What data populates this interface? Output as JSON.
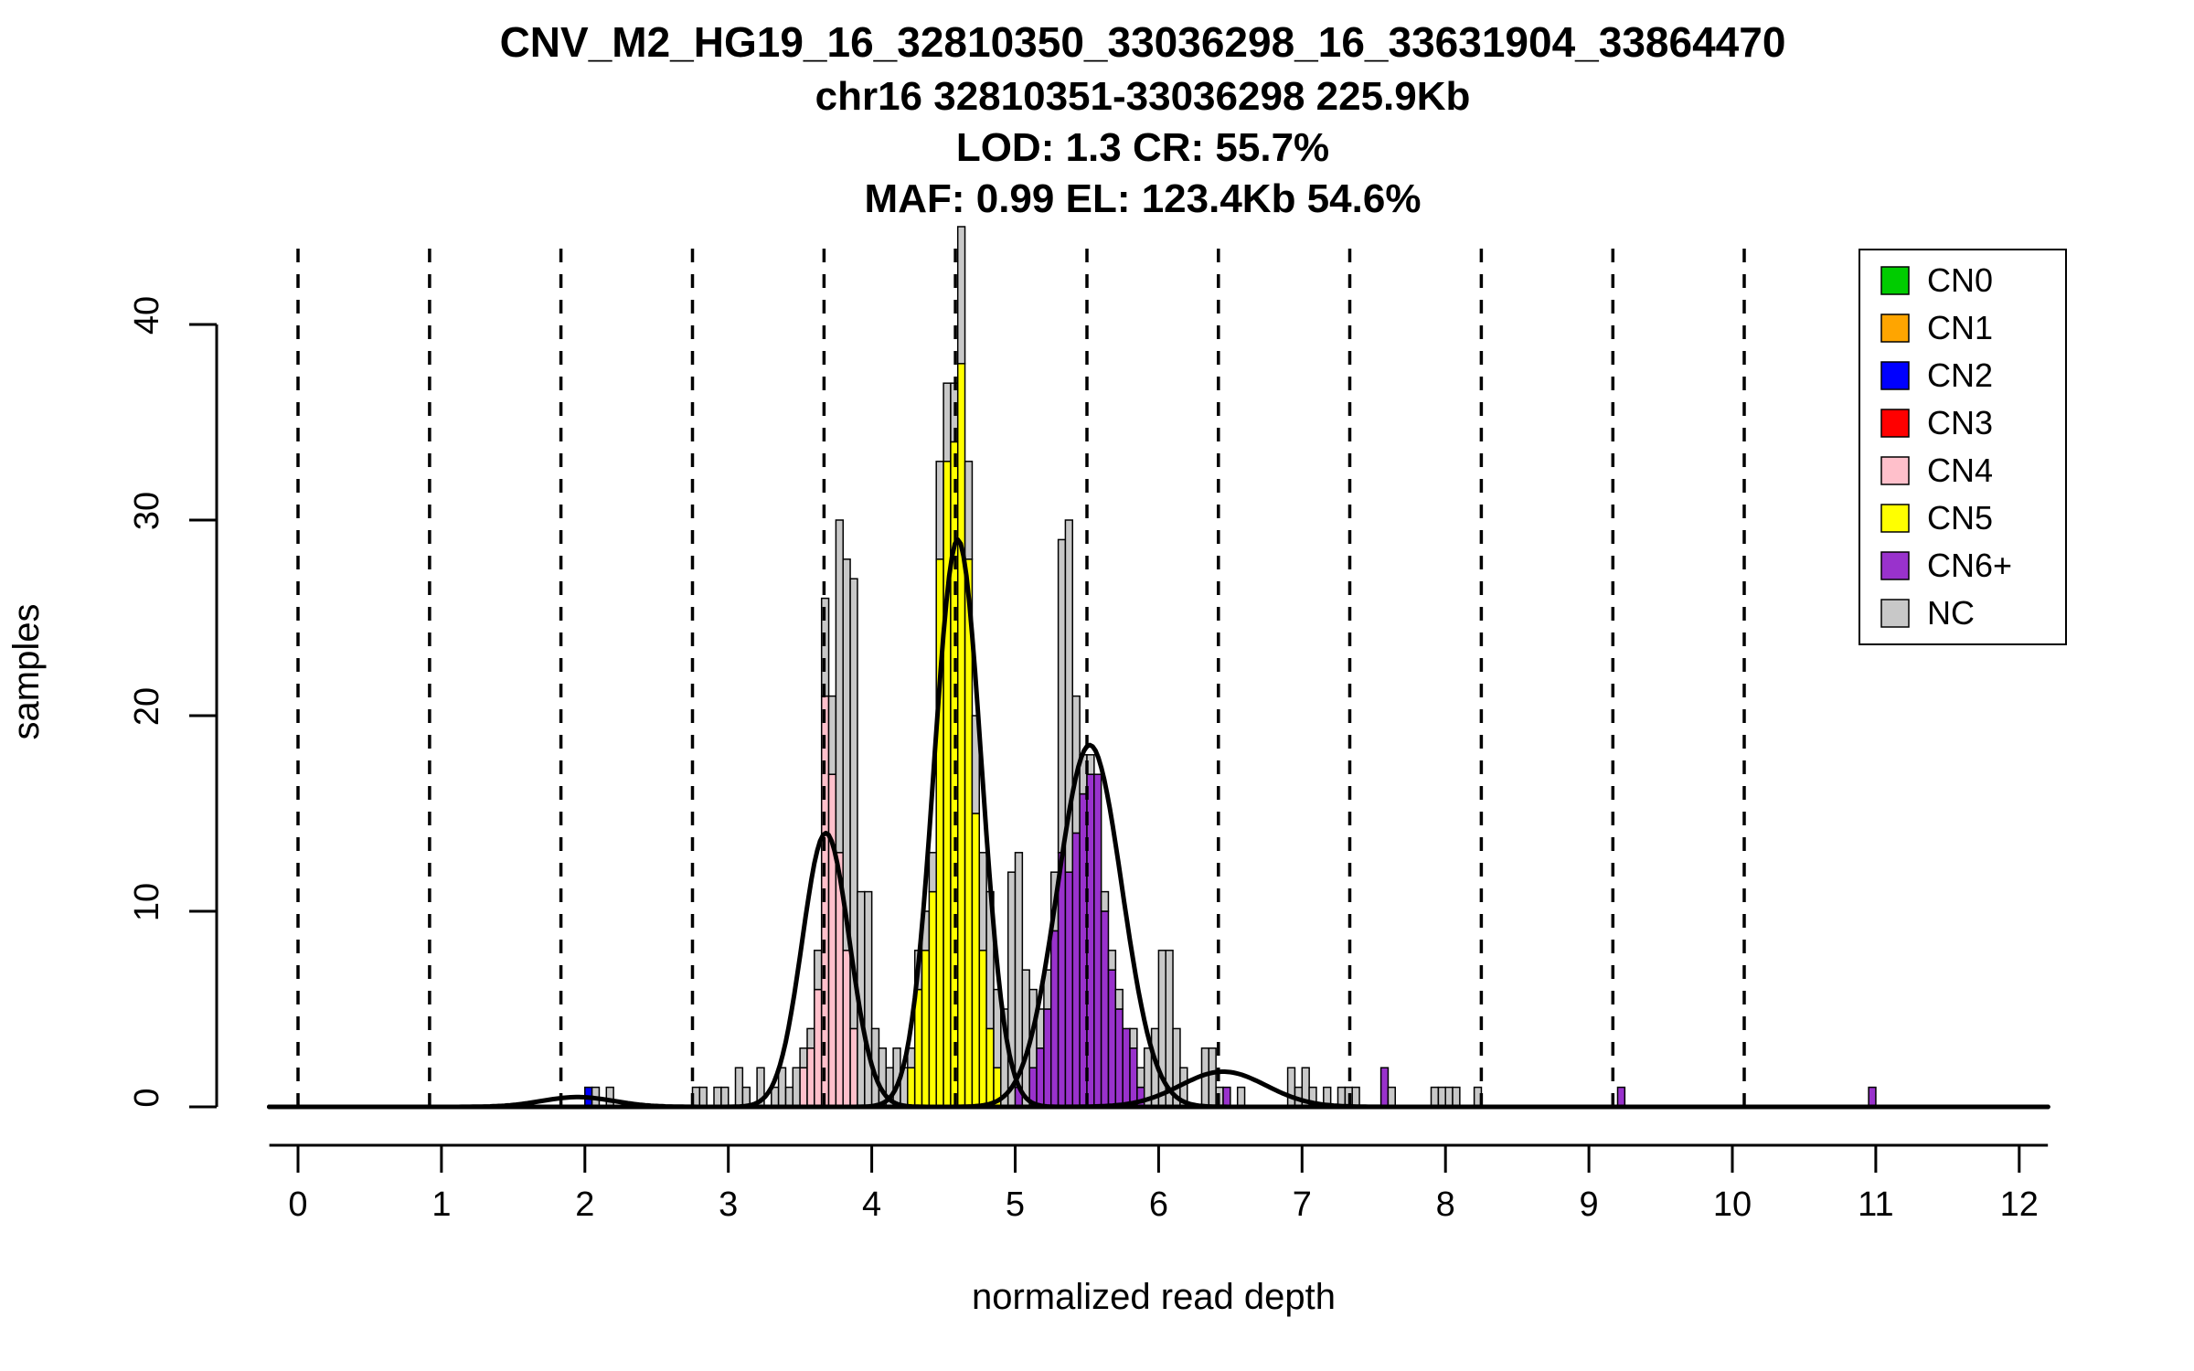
{
  "title_lines": [
    "CNV_M2_HG19_16_32810350_33036298_16_33631904_33864470",
    "chr16 32810351-33036298 225.9Kb",
    "LOD: 1.3 CR: 55.7%",
    "MAF: 0.99 EL: 123.4Kb 54.6%"
  ],
  "x_axis": {
    "label": "normalized read depth",
    "ticks": [
      0,
      1,
      2,
      3,
      4,
      5,
      6,
      7,
      8,
      9,
      10,
      11,
      12
    ],
    "range": [
      -0.2,
      12.2
    ]
  },
  "y_axis": {
    "label": "samples",
    "ticks": [
      0,
      10,
      20,
      30,
      40
    ],
    "range": [
      0,
      45
    ]
  },
  "legend": {
    "items": [
      {
        "label": "CN0",
        "color": "#00CC00"
      },
      {
        "label": "CN1",
        "color": "#FFA500"
      },
      {
        "label": "CN2",
        "color": "#0000FF"
      },
      {
        "label": "CN3",
        "color": "#FF0000"
      },
      {
        "label": "CN4",
        "color": "#FFC0CB"
      },
      {
        "label": "CN5",
        "color": "#FFFF00"
      },
      {
        "label": "CN6+",
        "color": "#9932CC"
      },
      {
        "label": "NC",
        "color": "#C8C8C8"
      }
    ]
  },
  "chart_data": {
    "type": "bar",
    "title": "CNV_M2_HG19_16_32810350_33036298_16_33631904_33864470",
    "subtitle_lines": [
      "chr16 32810351-33036298 225.9Kb",
      "LOD: 1.3 CR: 55.7%",
      "MAF: 0.99 EL: 123.4Kb 54.6%"
    ],
    "xlabel": "normalized read depth",
    "ylabel": "samples",
    "xlim": [
      -0.2,
      12.2
    ],
    "ylim": [
      0,
      45
    ],
    "grid": false,
    "legend_position": "top-right",
    "bin_width": 0.05,
    "class_colors": {
      "CN0": "#00CC00",
      "CN1": "#FFA500",
      "CN2": "#0000FF",
      "CN3": "#FF0000",
      "CN4": "#FFC0CB",
      "CN5": "#FFFF00",
      "CN6+": "#9932CC",
      "NC": "#C8C8C8"
    },
    "bars": [
      [
        2.0,
        [
          [
            "CN2",
            1
          ]
        ]
      ],
      [
        2.05,
        [
          [
            "NC",
            1
          ]
        ]
      ],
      [
        2.15,
        [
          [
            "NC",
            1
          ]
        ]
      ],
      [
        2.75,
        [
          [
            "NC",
            1
          ]
        ]
      ],
      [
        2.8,
        [
          [
            "NC",
            1
          ]
        ]
      ],
      [
        2.9,
        [
          [
            "NC",
            1
          ]
        ]
      ],
      [
        2.95,
        [
          [
            "NC",
            1
          ]
        ]
      ],
      [
        3.05,
        [
          [
            "NC",
            2
          ]
        ]
      ],
      [
        3.1,
        [
          [
            "NC",
            1
          ]
        ]
      ],
      [
        3.2,
        [
          [
            "NC",
            2
          ]
        ]
      ],
      [
        3.3,
        [
          [
            "NC",
            1
          ]
        ]
      ],
      [
        3.35,
        [
          [
            "NC",
            2
          ]
        ]
      ],
      [
        3.4,
        [
          [
            "NC",
            1
          ]
        ]
      ],
      [
        3.45,
        [
          [
            "NC",
            2
          ]
        ]
      ],
      [
        3.5,
        [
          [
            "CN4",
            2
          ],
          [
            "NC",
            1
          ]
        ]
      ],
      [
        3.55,
        [
          [
            "CN4",
            3
          ],
          [
            "NC",
            1
          ]
        ]
      ],
      [
        3.6,
        [
          [
            "CN4",
            6
          ],
          [
            "NC",
            2
          ]
        ]
      ],
      [
        3.65,
        [
          [
            "CN4",
            21
          ],
          [
            "NC",
            5
          ]
        ]
      ],
      [
        3.7,
        [
          [
            "CN4",
            17
          ],
          [
            "NC",
            4
          ]
        ]
      ],
      [
        3.75,
        [
          [
            "CN4",
            13
          ],
          [
            "NC",
            17
          ]
        ]
      ],
      [
        3.8,
        [
          [
            "CN4",
            8
          ],
          [
            "NC",
            20
          ]
        ]
      ],
      [
        3.85,
        [
          [
            "CN4",
            4
          ],
          [
            "NC",
            23
          ]
        ]
      ],
      [
        3.9,
        [
          [
            "NC",
            11
          ]
        ]
      ],
      [
        3.95,
        [
          [
            "NC",
            11
          ]
        ]
      ],
      [
        4.0,
        [
          [
            "NC",
            4
          ]
        ]
      ],
      [
        4.05,
        [
          [
            "NC",
            3
          ]
        ]
      ],
      [
        4.1,
        [
          [
            "NC",
            2
          ]
        ]
      ],
      [
        4.15,
        [
          [
            "NC",
            3
          ]
        ]
      ],
      [
        4.2,
        [
          [
            "NC",
            2
          ]
        ]
      ],
      [
        4.25,
        [
          [
            "CN5",
            2
          ],
          [
            "NC",
            1
          ]
        ]
      ],
      [
        4.3,
        [
          [
            "CN5",
            6
          ],
          [
            "NC",
            2
          ]
        ]
      ],
      [
        4.35,
        [
          [
            "CN5",
            8
          ],
          [
            "NC",
            2
          ]
        ]
      ],
      [
        4.4,
        [
          [
            "CN5",
            11
          ],
          [
            "NC",
            2
          ]
        ]
      ],
      [
        4.45,
        [
          [
            "CN5",
            28
          ],
          [
            "NC",
            5
          ]
        ]
      ],
      [
        4.5,
        [
          [
            "CN5",
            33
          ],
          [
            "NC",
            4
          ]
        ]
      ],
      [
        4.55,
        [
          [
            "CN5",
            34
          ],
          [
            "NC",
            3
          ]
        ]
      ],
      [
        4.6,
        [
          [
            "CN5",
            38
          ],
          [
            "NC",
            7
          ]
        ]
      ],
      [
        4.65,
        [
          [
            "CN5",
            28
          ],
          [
            "NC",
            5
          ]
        ]
      ],
      [
        4.7,
        [
          [
            "CN5",
            15
          ],
          [
            "NC",
            5
          ]
        ]
      ],
      [
        4.75,
        [
          [
            "CN5",
            8
          ],
          [
            "NC",
            5
          ]
        ]
      ],
      [
        4.8,
        [
          [
            "CN5",
            4
          ],
          [
            "NC",
            7
          ]
        ]
      ],
      [
        4.85,
        [
          [
            "CN5",
            2
          ],
          [
            "NC",
            4
          ]
        ]
      ],
      [
        4.9,
        [
          [
            "NC",
            5
          ]
        ]
      ],
      [
        4.95,
        [
          [
            "NC",
            12
          ]
        ]
      ],
      [
        5.0,
        [
          [
            "CN6+",
            1
          ],
          [
            "NC",
            12
          ]
        ]
      ],
      [
        5.05,
        [
          [
            "NC",
            7
          ]
        ]
      ],
      [
        5.1,
        [
          [
            "CN6+",
            2
          ],
          [
            "NC",
            4
          ]
        ]
      ],
      [
        5.15,
        [
          [
            "CN6+",
            3
          ],
          [
            "NC",
            2
          ]
        ]
      ],
      [
        5.2,
        [
          [
            "CN6+",
            5
          ],
          [
            "NC",
            2
          ]
        ]
      ],
      [
        5.25,
        [
          [
            "CN6+",
            9
          ],
          [
            "NC",
            3
          ]
        ]
      ],
      [
        5.3,
        [
          [
            "CN6+",
            13
          ],
          [
            "NC",
            16
          ]
        ]
      ],
      [
        5.35,
        [
          [
            "CN6+",
            12
          ],
          [
            "NC",
            18
          ]
        ]
      ],
      [
        5.4,
        [
          [
            "CN6+",
            14
          ],
          [
            "NC",
            7
          ]
        ]
      ],
      [
        5.45,
        [
          [
            "CN6+",
            16
          ],
          [
            "NC",
            2
          ]
        ]
      ],
      [
        5.5,
        [
          [
            "CN6+",
            17
          ],
          [
            "NC",
            1
          ]
        ]
      ],
      [
        5.55,
        [
          [
            "CN6+",
            17
          ]
        ]
      ],
      [
        5.6,
        [
          [
            "CN6+",
            10
          ],
          [
            "NC",
            1
          ]
        ]
      ],
      [
        5.65,
        [
          [
            "CN6+",
            7
          ],
          [
            "NC",
            1
          ]
        ]
      ],
      [
        5.7,
        [
          [
            "CN6+",
            5
          ],
          [
            "NC",
            1
          ]
        ]
      ],
      [
        5.75,
        [
          [
            "CN6+",
            4
          ]
        ]
      ],
      [
        5.8,
        [
          [
            "CN6+",
            3
          ],
          [
            "NC",
            1
          ]
        ]
      ],
      [
        5.85,
        [
          [
            "CN6+",
            1
          ],
          [
            "NC",
            1
          ]
        ]
      ],
      [
        5.9,
        [
          [
            "NC",
            3
          ]
        ]
      ],
      [
        5.95,
        [
          [
            "NC",
            4
          ]
        ]
      ],
      [
        6.0,
        [
          [
            "NC",
            8
          ]
        ]
      ],
      [
        6.05,
        [
          [
            "NC",
            8
          ]
        ]
      ],
      [
        6.1,
        [
          [
            "NC",
            4
          ]
        ]
      ],
      [
        6.15,
        [
          [
            "NC",
            2
          ]
        ]
      ],
      [
        6.3,
        [
          [
            "NC",
            3
          ]
        ]
      ],
      [
        6.35,
        [
          [
            "NC",
            3
          ]
        ]
      ],
      [
        6.4,
        [
          [
            "NC",
            1
          ]
        ]
      ],
      [
        6.45,
        [
          [
            "CN6+",
            1
          ]
        ]
      ],
      [
        6.55,
        [
          [
            "NC",
            1
          ]
        ]
      ],
      [
        6.9,
        [
          [
            "NC",
            2
          ]
        ]
      ],
      [
        6.95,
        [
          [
            "NC",
            1
          ]
        ]
      ],
      [
        7.0,
        [
          [
            "NC",
            2
          ]
        ]
      ],
      [
        7.05,
        [
          [
            "NC",
            1
          ]
        ]
      ],
      [
        7.15,
        [
          [
            "NC",
            1
          ]
        ]
      ],
      [
        7.25,
        [
          [
            "NC",
            1
          ]
        ]
      ],
      [
        7.3,
        [
          [
            "NC",
            1
          ]
        ]
      ],
      [
        7.35,
        [
          [
            "NC",
            1
          ]
        ]
      ],
      [
        7.55,
        [
          [
            "CN6+",
            2
          ]
        ]
      ],
      [
        7.6,
        [
          [
            "NC",
            1
          ]
        ]
      ],
      [
        7.9,
        [
          [
            "NC",
            1
          ]
        ]
      ],
      [
        7.95,
        [
          [
            "NC",
            1
          ]
        ]
      ],
      [
        8.0,
        [
          [
            "NC",
            1
          ]
        ]
      ],
      [
        8.05,
        [
          [
            "NC",
            1
          ]
        ]
      ],
      [
        8.2,
        [
          [
            "NC",
            1
          ]
        ]
      ],
      [
        9.2,
        [
          [
            "CN6+",
            1
          ]
        ]
      ],
      [
        10.95,
        [
          [
            "CN6+",
            1
          ]
        ]
      ]
    ],
    "density_curves": [
      {
        "mean": 1.95,
        "sd": 0.25,
        "peak": 0.5
      },
      {
        "mean": 3.68,
        "sd": 0.165,
        "peak": 14
      },
      {
        "mean": 4.6,
        "sd": 0.165,
        "peak": 29
      },
      {
        "mean": 5.52,
        "sd": 0.225,
        "peak": 18.5
      },
      {
        "mean": 6.45,
        "sd": 0.3,
        "peak": 1.8
      }
    ],
    "dashed_lines_x": [
      0,
      0.917,
      1.833,
      2.75,
      3.667,
      4.583,
      5.5,
      6.417,
      7.333,
      8.25,
      9.167,
      10.083
    ]
  }
}
